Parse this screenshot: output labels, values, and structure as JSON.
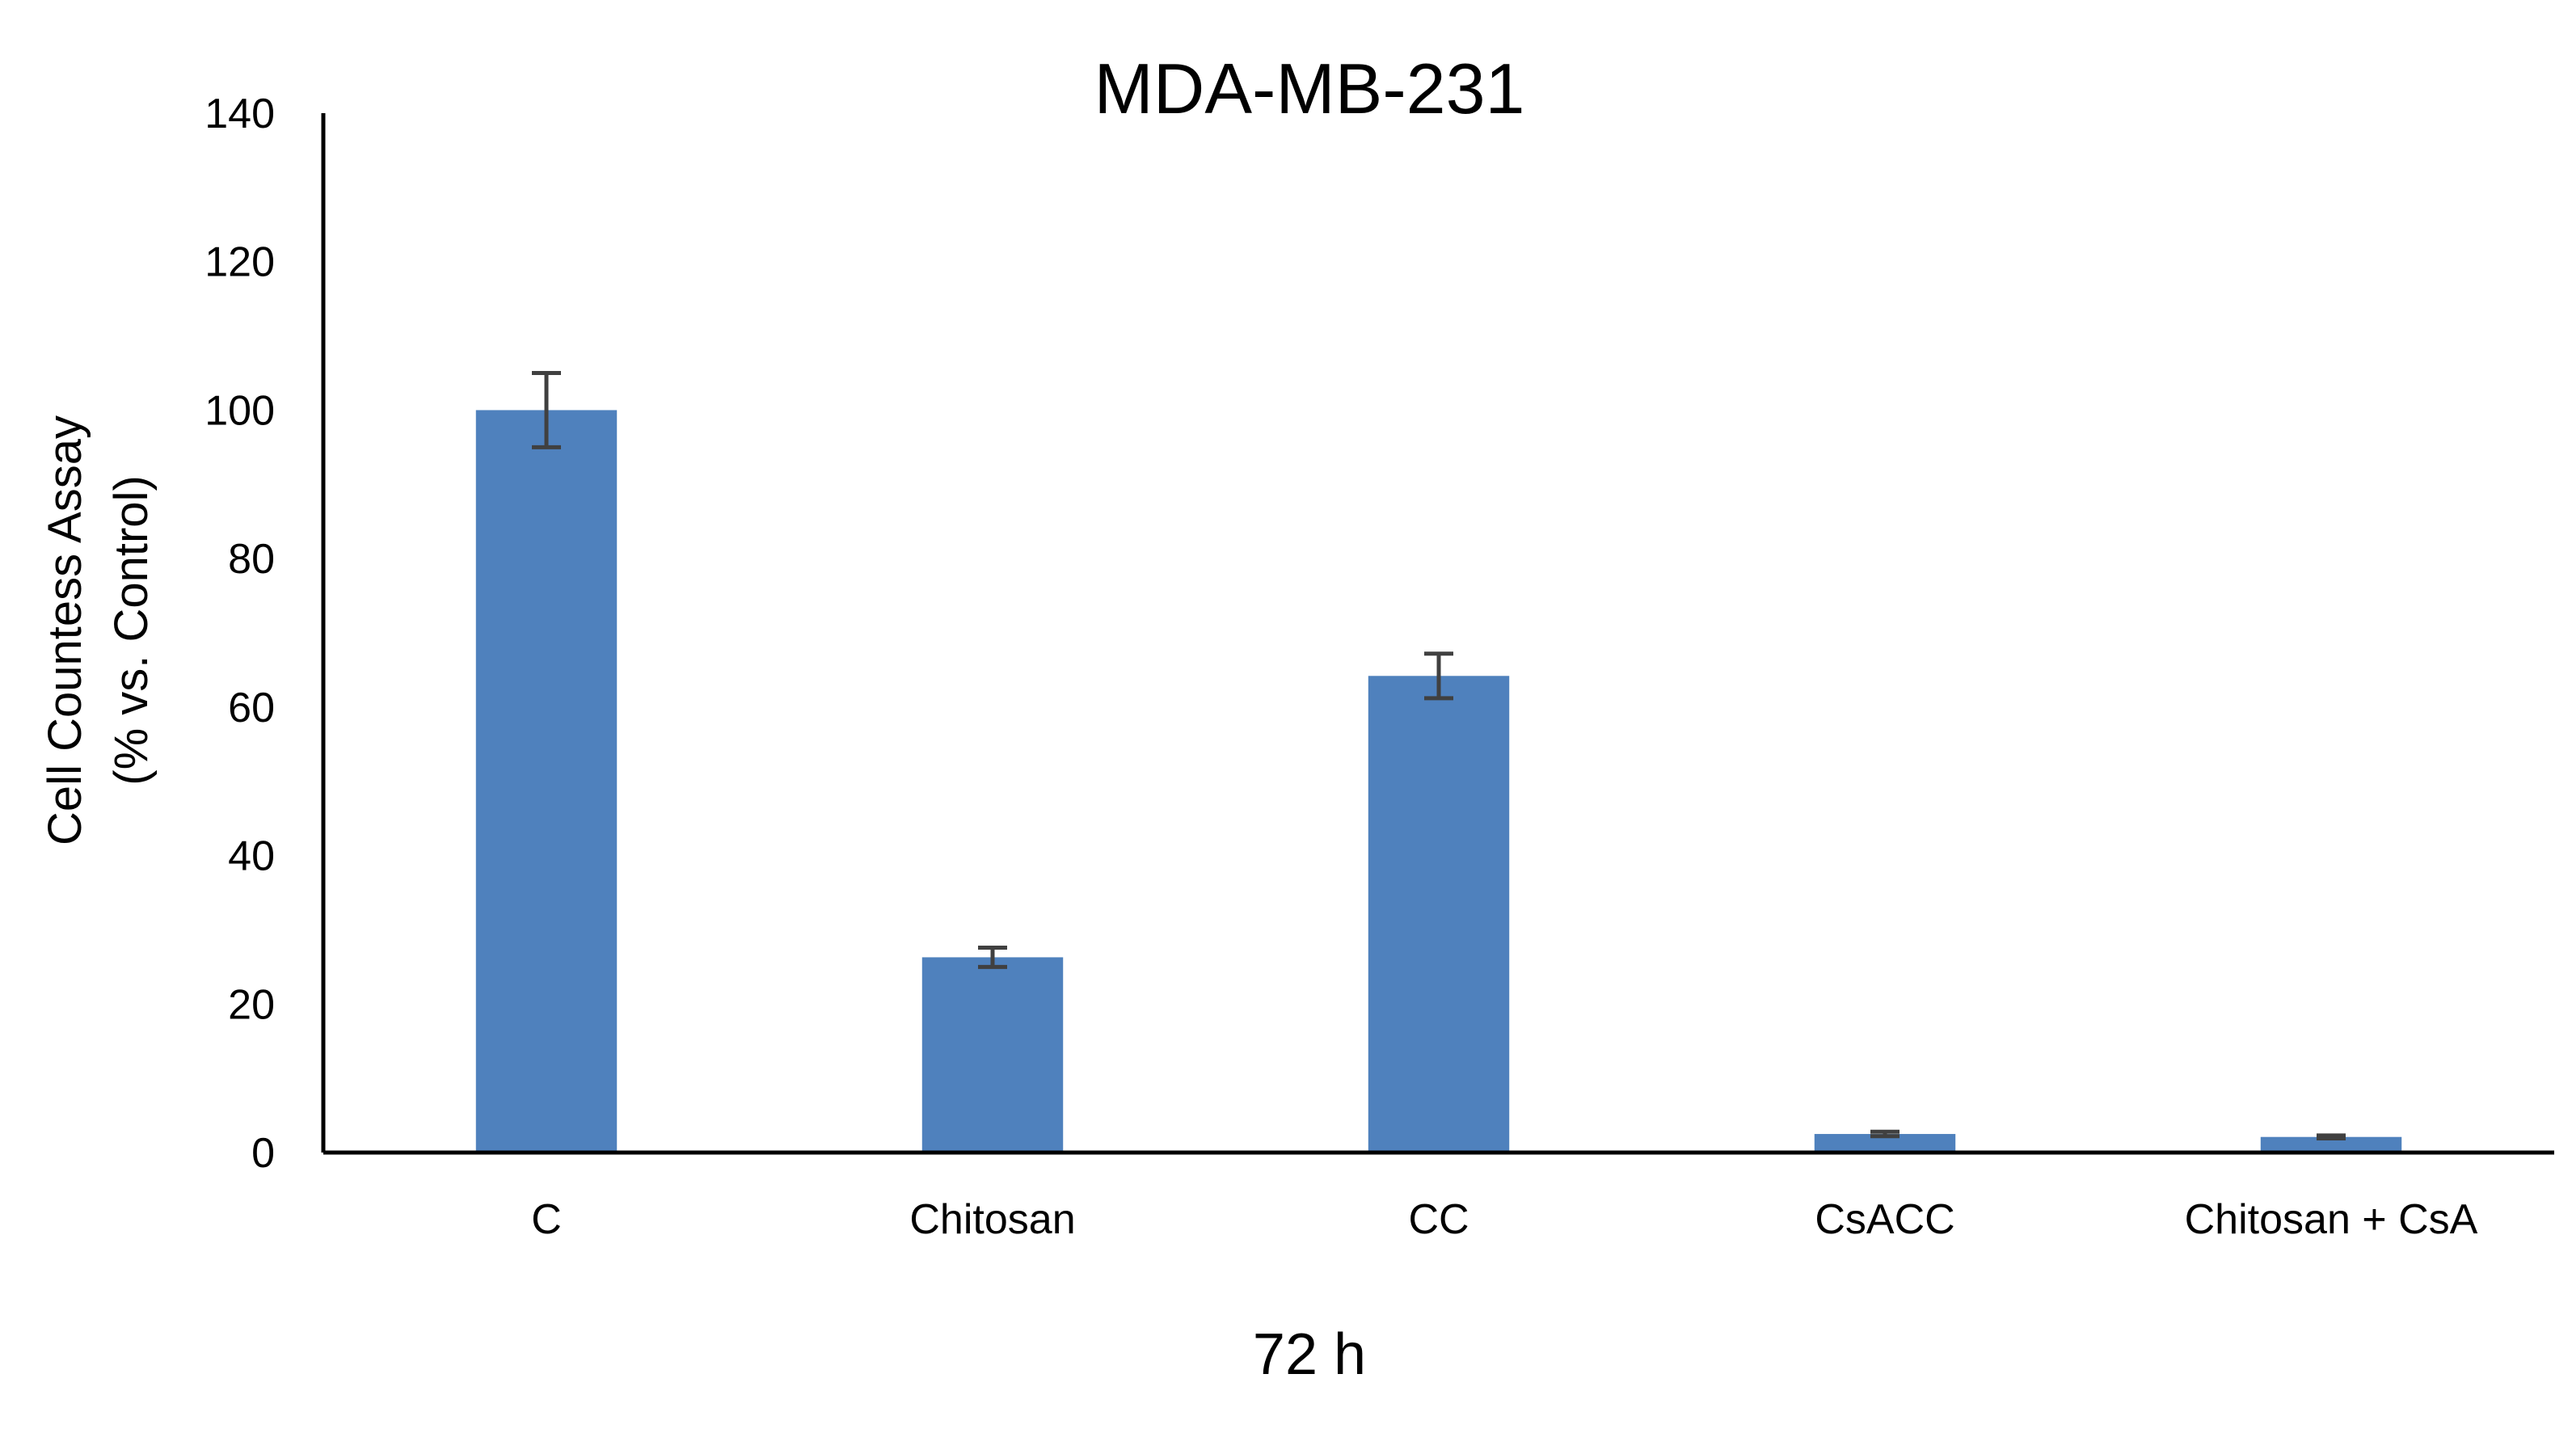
{
  "chart_data": {
    "type": "bar",
    "title": "MDA-MB-231",
    "xlabel": "72 h",
    "ylabel_lines": [
      "Cell Countess Assay",
      "(% vs. Control)"
    ],
    "categories": [
      "C",
      "Chitosan",
      "CC",
      "CsACC",
      "Chitosan + CsA"
    ],
    "values": [
      100,
      26.3,
      64.2,
      2.5,
      2.1
    ],
    "errors": [
      5,
      1.3,
      3,
      0.3,
      0.2
    ],
    "ylim": [
      0,
      140
    ],
    "yticks": [
      0,
      20,
      40,
      60,
      80,
      100,
      120,
      140
    ],
    "grid": false,
    "legend": "none",
    "bar_color": "#4f81bd",
    "error_color": "#404040"
  }
}
